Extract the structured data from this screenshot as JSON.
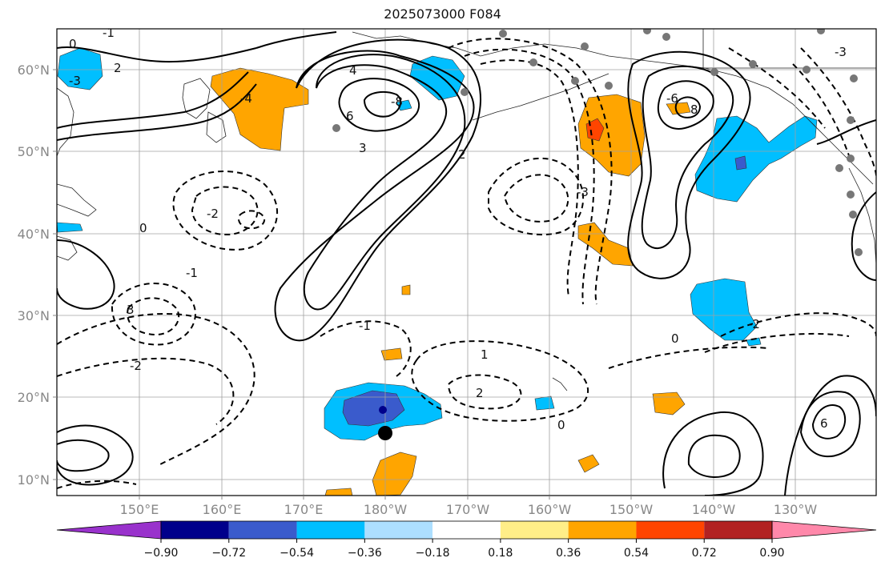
{
  "title": "2025073000 F084",
  "map": {
    "lat_labels": [
      "60°N",
      "50°N",
      "40°N",
      "30°N",
      "20°N",
      "10°N"
    ],
    "lon_labels": [
      "150°E",
      "160°E",
      "170°E",
      "180°W",
      "170°W",
      "160°W",
      "150°W",
      "140°W",
      "130°W"
    ],
    "contour_labels": [
      "0",
      "-1",
      "2",
      "-3",
      "4",
      "-4",
      "3",
      "6",
      "-8",
      "8",
      "-6",
      "2",
      "-2",
      "0",
      "-1",
      "3",
      "-3",
      "1",
      "-1",
      "2",
      "-2",
      "0",
      "-2",
      "0",
      "6",
      "-3"
    ]
  },
  "colorbar": {
    "colors": [
      "#9932CC",
      "#00008B",
      "#3A5BCC",
      "#00BFFF",
      "#ADDFFF",
      "#FFFFFF",
      "#FFEE88",
      "#FFA500",
      "#FF4500",
      "#B22222",
      "#FF88AA"
    ],
    "labels": [
      "−0.90",
      "−0.72",
      "−0.54",
      "−0.36",
      "−0.18",
      "0.18",
      "0.36",
      "0.54",
      "0.72",
      "0.90"
    ]
  }
}
